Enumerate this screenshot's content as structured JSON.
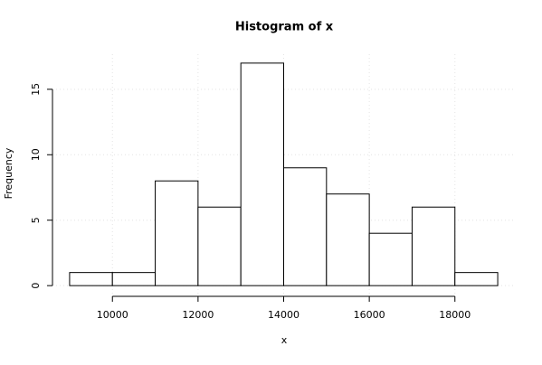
{
  "chart_data": {
    "type": "histogram",
    "title": "Histogram of x",
    "x_label": "x",
    "y_label": "Frequency",
    "bins": [
      9000,
      10000,
      11000,
      12000,
      13000,
      14000,
      15000,
      16000,
      17000,
      18000,
      19000
    ],
    "values": [
      1,
      1,
      8,
      6,
      17,
      9,
      7,
      4,
      6,
      1
    ],
    "color": "#ffffff",
    "xlim": [
      9000,
      19000
    ],
    "ylim": [
      0,
      17
    ],
    "xticks": [
      10000,
      12000,
      14000,
      16000,
      18000
    ],
    "yticks": [
      0,
      5,
      10,
      15
    ],
    "grid": true
  }
}
